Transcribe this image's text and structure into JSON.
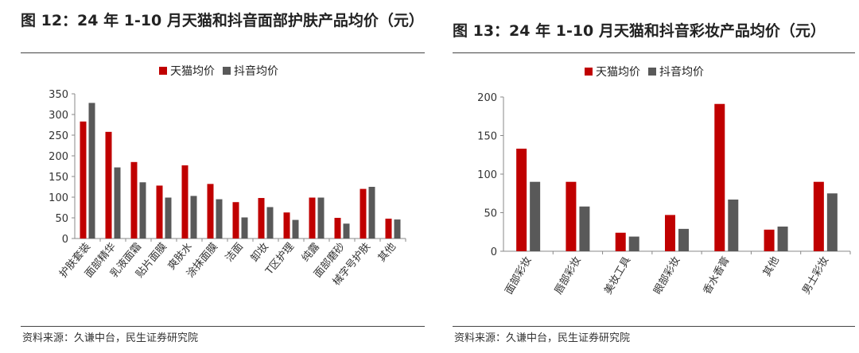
{
  "colors": {
    "tmall": "#c00000",
    "douyin": "#595959"
  },
  "chart_data": [
    {
      "type": "bar",
      "title": "图 12：24 年 1-10 月天猫和抖音面部护肤产品均价（元）",
      "categories": [
        "护肤套装",
        "面部精华",
        "乳液面霜",
        "贴片面膜",
        "爽肤水",
        "涂抹面膜",
        "洁面",
        "卸妆",
        "T区护理",
        "纯露",
        "面部磨砂",
        "械字号护肤",
        "其他"
      ],
      "series": [
        {
          "name": "天猫均价",
          "values": [
            283,
            258,
            185,
            128,
            177,
            132,
            88,
            98,
            63,
            99,
            50,
            120,
            48
          ]
        },
        {
          "name": "抖音均价",
          "values": [
            328,
            172,
            136,
            99,
            103,
            95,
            51,
            76,
            45,
            99,
            36,
            125,
            46
          ]
        }
      ],
      "ylim": [
        0,
        350
      ],
      "yticks": [
        0,
        50,
        100,
        150,
        200,
        250,
        300,
        350
      ],
      "legend": "top",
      "grid": false,
      "source": "资料来源：久谦中台，民生证券研究院"
    },
    {
      "type": "bar",
      "title": "图 13：24 年 1-10 月天猫和抖音彩妆产品均价（元）",
      "categories": [
        "面部彩妆",
        "唇部彩妆",
        "美妆工具",
        "眼部彩妆",
        "香水香膏",
        "其他",
        "男士彩妆"
      ],
      "series": [
        {
          "name": "天猫均价",
          "values": [
            133,
            90,
            24,
            47,
            191,
            28,
            90
          ]
        },
        {
          "name": "抖音均价",
          "values": [
            90,
            58,
            19,
            29,
            67,
            32,
            75
          ]
        }
      ],
      "ylim": [
        0,
        200
      ],
      "yticks": [
        0,
        50,
        100,
        150,
        200
      ],
      "legend": "top",
      "grid": false,
      "source": "资料来源：久谦中台，民生证券研究院"
    }
  ]
}
